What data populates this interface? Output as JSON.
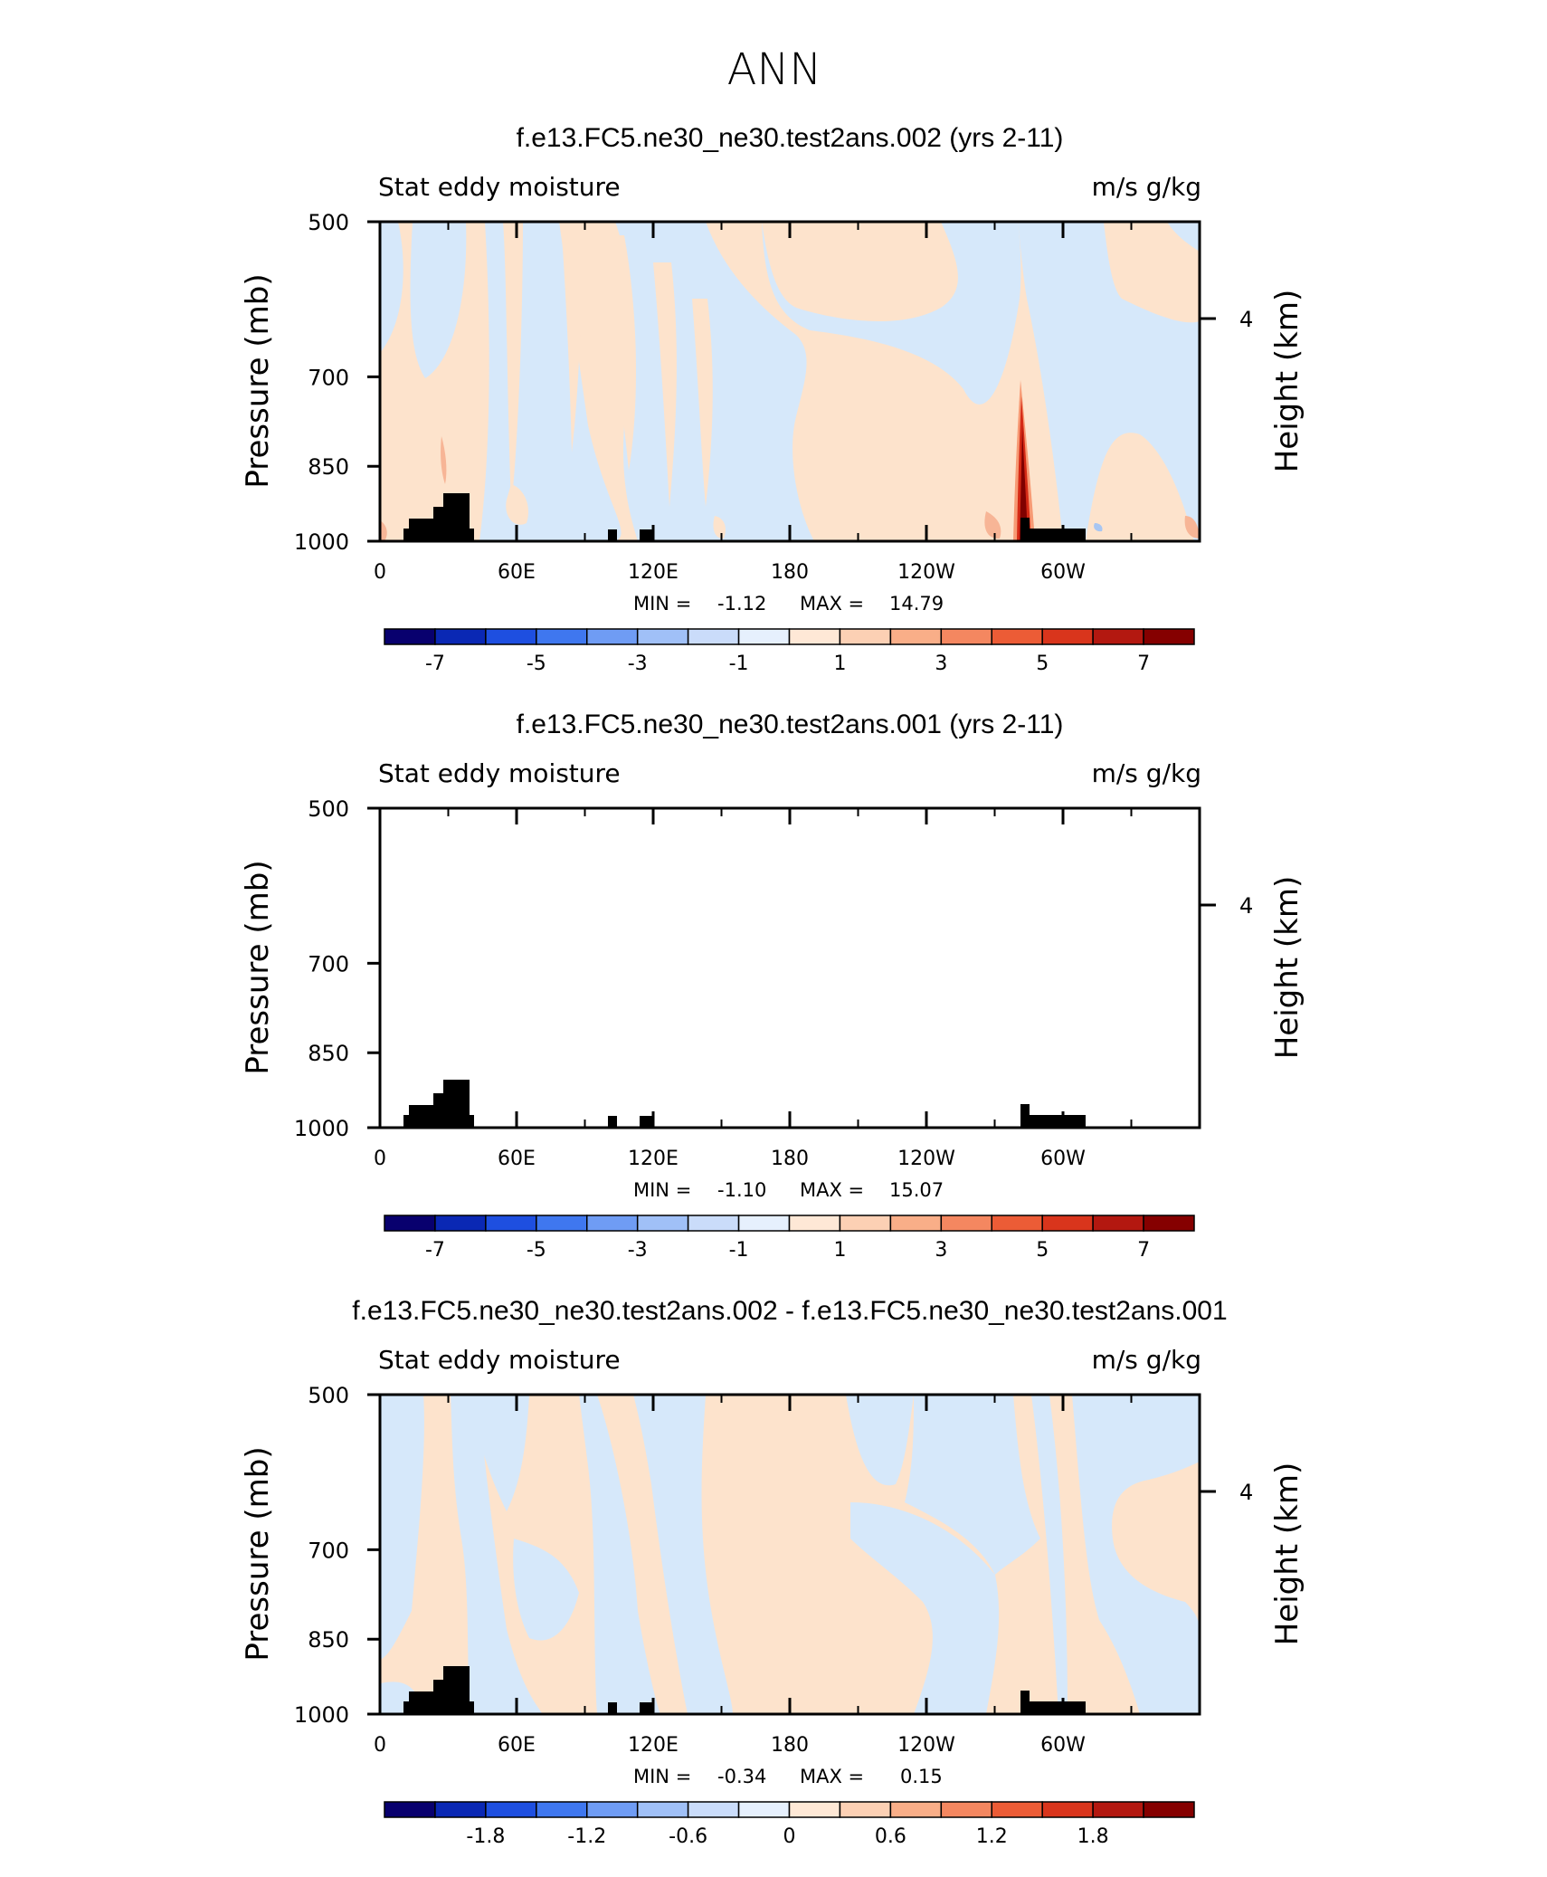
{
  "figure_title": "ANN",
  "colors": {
    "pos_light": "#fde3cc",
    "neg_light": "#d6e8fa",
    "land": "#000000",
    "spike_dark": "#7f0000",
    "spike_mid": "#d52a16",
    "spike_light": "#f79a74",
    "blip_blue": "#a8c6f2"
  },
  "chart_data": [
    {
      "type": "heatmap",
      "title": "f.e13.FC5.ne30_ne30.test2ans.002 (yrs 2-11)",
      "left_label": "Stat eddy moisture",
      "right_label": "m/s g/kg",
      "ylabel": "Pressure (mb)",
      "ylabel2": "Height (km)",
      "x_ticks": [
        "0",
        "60E",
        "120E",
        "180",
        "120W",
        "60W"
      ],
      "y_ticks": [
        "500",
        "700",
        "850",
        "1000"
      ],
      "y2_ticks": [
        "4"
      ],
      "ylim": [
        1000,
        500
      ],
      "stats": {
        "min_label": "MIN =",
        "min": "-1.12",
        "max_label": "MAX =",
        "max": "14.79"
      },
      "colorbar": {
        "ticks": [
          "-7",
          "-5",
          "-3",
          "-1",
          "1",
          "3",
          "5",
          "7"
        ],
        "levels": [
          -8,
          -7,
          -6,
          -5,
          -4,
          -3,
          -2,
          -1,
          0,
          1,
          2,
          3,
          4,
          5,
          6,
          7,
          8
        ]
      }
    },
    {
      "type": "heatmap",
      "title": "f.e13.FC5.ne30_ne30.test2ans.001 (yrs 2-11)",
      "left_label": "Stat eddy moisture",
      "right_label": "m/s g/kg",
      "ylabel": "Pressure (mb)",
      "ylabel2": "Height (km)",
      "x_ticks": [
        "0",
        "60E",
        "120E",
        "180",
        "120W",
        "60W"
      ],
      "y_ticks": [
        "500",
        "700",
        "850",
        "1000"
      ],
      "y2_ticks": [
        "4"
      ],
      "ylim": [
        1000,
        500
      ],
      "stats": {
        "min_label": "MIN =",
        "min": "-1.10",
        "max_label": "MAX =",
        "max": "15.07"
      },
      "colorbar": {
        "ticks": [
          "-7",
          "-5",
          "-3",
          "-1",
          "1",
          "3",
          "5",
          "7"
        ],
        "levels": [
          -8,
          -7,
          -6,
          -5,
          -4,
          -3,
          -2,
          -1,
          0,
          1,
          2,
          3,
          4,
          5,
          6,
          7,
          8
        ]
      }
    },
    {
      "type": "heatmap",
      "title": "f.e13.FC5.ne30_ne30.test2ans.002 - f.e13.FC5.ne30_ne30.test2ans.001",
      "left_label": "Stat eddy moisture",
      "right_label": "m/s g/kg",
      "ylabel": "Pressure (mb)",
      "ylabel2": "Height (km)",
      "x_ticks": [
        "0",
        "60E",
        "120E",
        "180",
        "120W",
        "60W"
      ],
      "y_ticks": [
        "500",
        "700",
        "850",
        "1000"
      ],
      "y2_ticks": [
        "4"
      ],
      "ylim": [
        1000,
        500
      ],
      "stats": {
        "min_label": "MIN =",
        "min": "-0.34",
        "max_label": "MAX =",
        "max": "0.15"
      },
      "colorbar": {
        "ticks": [
          "-1.8",
          "-1.2",
          "-0.6",
          "0",
          "0.6",
          "1.2",
          "1.8"
        ],
        "levels": [
          -2.4,
          -2.1,
          -1.8,
          -1.5,
          -1.2,
          -0.9,
          -0.6,
          -0.3,
          0,
          0.3,
          0.6,
          0.9,
          1.2,
          1.5,
          1.8,
          2.1,
          2.4
        ]
      }
    }
  ]
}
